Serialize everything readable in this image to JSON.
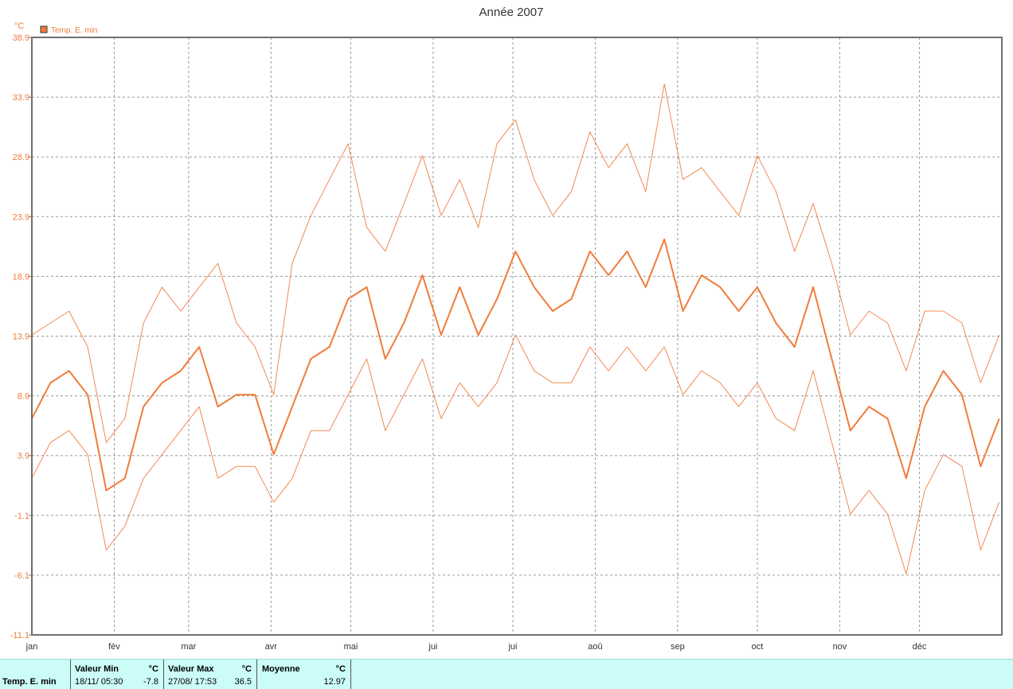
{
  "stats": {
    "series_label": "Temp. E. min",
    "min": {
      "header": "Valeur Min",
      "unit": "°C",
      "date": "18/11/ 05:30",
      "value": "-7.8"
    },
    "max": {
      "header": "Valeur Max",
      "unit": "°C",
      "date": "27/08/ 17:53",
      "value": "36.5"
    },
    "avg": {
      "header": "Moyenne",
      "unit": "°C",
      "value": "12.97"
    }
  },
  "chart_data": {
    "type": "line",
    "title": "Année 2007",
    "unit_label": "°C",
    "legend": {
      "position": "top-left",
      "entries": [
        "Temp. E. min"
      ]
    },
    "x_tick_labels": [
      "jan",
      "fév",
      "mar",
      "avr",
      "mai",
      "jui",
      "jui",
      "aoû",
      "sep",
      "oct",
      "nov",
      "déc"
    ],
    "x_tick_days": [
      0,
      31,
      59,
      90,
      120,
      151,
      181,
      212,
      243,
      273,
      304,
      334
    ],
    "x_range_days": [
      0,
      365
    ],
    "y_ticks": [
      -11.1,
      -6.1,
      -1.1,
      3.9,
      8.9,
      13.9,
      18.9,
      23.9,
      28.9,
      33.9,
      38.9
    ],
    "ylim": [
      -11.1,
      38.9
    ],
    "grid": true,
    "colors": {
      "series": "#f07c3c",
      "grid": "#9a9a9a",
      "frame": "#707070"
    },
    "series": [
      {
        "name": "Temp. E. min",
        "role": "mean",
        "x_days": [
          0,
          7,
          14,
          21,
          28,
          35,
          42,
          49,
          56,
          63,
          70,
          77,
          84,
          91,
          98,
          105,
          112,
          119,
          126,
          133,
          140,
          147,
          154,
          161,
          168,
          175,
          182,
          189,
          196,
          203,
          210,
          217,
          224,
          231,
          238,
          245,
          252,
          259,
          266,
          273,
          280,
          287,
          294,
          301,
          308,
          315,
          322,
          329,
          336,
          343,
          350,
          357,
          364
        ],
        "values": [
          7,
          10,
          11,
          9,
          1,
          2,
          8,
          10,
          11,
          13,
          8,
          9,
          9,
          4,
          8,
          12,
          13,
          17,
          18,
          12,
          15,
          19,
          14,
          18,
          14,
          17,
          21,
          18,
          16,
          17,
          21,
          19,
          21,
          18,
          22,
          16,
          19,
          18,
          16,
          18,
          15,
          13,
          18,
          12,
          6,
          8,
          7,
          2,
          8,
          11,
          9,
          3,
          7
        ]
      },
      {
        "name": "",
        "role": "upper",
        "x_days": [
          0,
          7,
          14,
          21,
          28,
          35,
          42,
          49,
          56,
          63,
          70,
          77,
          84,
          91,
          98,
          105,
          112,
          119,
          126,
          133,
          140,
          147,
          154,
          161,
          168,
          175,
          182,
          189,
          196,
          203,
          210,
          217,
          224,
          231,
          238,
          245,
          252,
          259,
          266,
          273,
          280,
          287,
          294,
          301,
          308,
          315,
          322,
          329,
          336,
          343,
          350,
          357,
          364
        ],
        "values": [
          14,
          15,
          16,
          13,
          5,
          7,
          15,
          18,
          16,
          18,
          20,
          15,
          13,
          9,
          20,
          24,
          27,
          30,
          23,
          21,
          25,
          29,
          24,
          27,
          23,
          30,
          32,
          27,
          24,
          26,
          31,
          28,
          30,
          26,
          35,
          27,
          28,
          26,
          24,
          29,
          26,
          21,
          25,
          20,
          14,
          16,
          15,
          11,
          16,
          16,
          15,
          10,
          14
        ]
      },
      {
        "name": "",
        "role": "lower",
        "x_days": [
          0,
          7,
          14,
          21,
          28,
          35,
          42,
          49,
          56,
          63,
          70,
          77,
          84,
          91,
          98,
          105,
          112,
          119,
          126,
          133,
          140,
          147,
          154,
          161,
          168,
          175,
          182,
          189,
          196,
          203,
          210,
          217,
          224,
          231,
          238,
          245,
          252,
          259,
          266,
          273,
          280,
          287,
          294,
          301,
          308,
          315,
          322,
          329,
          336,
          343,
          350,
          357,
          364
        ],
        "values": [
          2,
          5,
          6,
          4,
          -4,
          -2,
          2,
          4,
          6,
          8,
          2,
          3,
          3,
          0,
          2,
          6,
          6,
          9,
          12,
          6,
          9,
          12,
          7,
          10,
          8,
          10,
          14,
          11,
          10,
          10,
          13,
          11,
          13,
          11,
          13,
          9,
          11,
          10,
          8,
          10,
          7,
          6,
          11,
          5,
          -1,
          1,
          -1,
          -6,
          1,
          4,
          3,
          -4,
          0
        ]
      }
    ]
  }
}
